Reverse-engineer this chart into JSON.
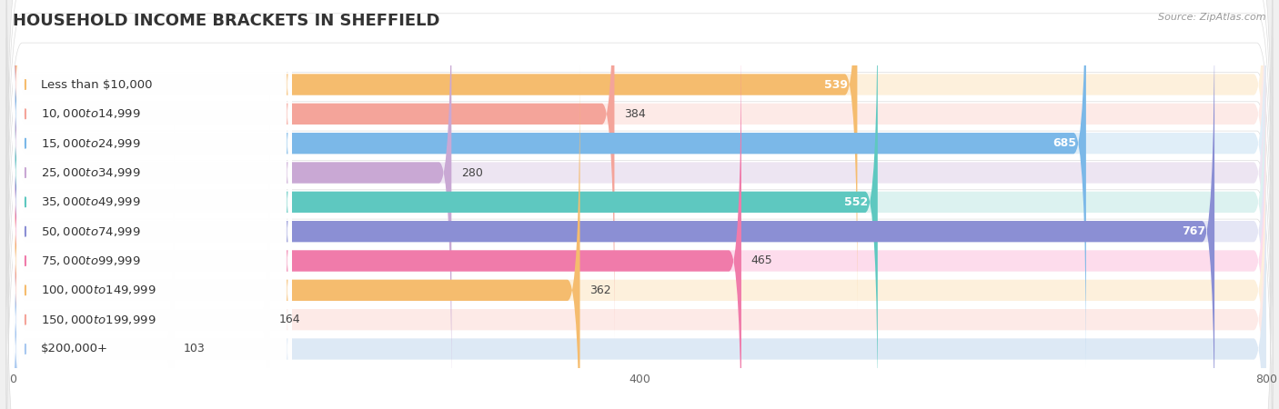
{
  "title": "HOUSEHOLD INCOME BRACKETS IN SHEFFIELD",
  "source": "Source: ZipAtlas.com",
  "categories": [
    "Less than $10,000",
    "$10,000 to $14,999",
    "$15,000 to $24,999",
    "$25,000 to $34,999",
    "$35,000 to $49,999",
    "$50,000 to $74,999",
    "$75,000 to $99,999",
    "$100,000 to $149,999",
    "$150,000 to $199,999",
    "$200,000+"
  ],
  "values": [
    539,
    384,
    685,
    280,
    552,
    767,
    465,
    362,
    164,
    103
  ],
  "bar_colors": [
    "#F5BC6E",
    "#F4A49A",
    "#7BB8E8",
    "#C9A8D4",
    "#5EC8C0",
    "#8B8FD4",
    "#F07BAA",
    "#F5BC6E",
    "#F4A49A",
    "#A8C8F0"
  ],
  "bar_bg_colors": [
    "#FDF0DC",
    "#FDEAE7",
    "#E0EEF8",
    "#EDE5F2",
    "#DCF2F0",
    "#E5E6F5",
    "#FDDCEC",
    "#FDF0DC",
    "#FDEAE7",
    "#DDE9F5"
  ],
  "value_inside": [
    true,
    false,
    true,
    false,
    true,
    true,
    false,
    false,
    false,
    false
  ],
  "xlim": [
    0,
    800
  ],
  "xticks": [
    0,
    400,
    800
  ],
  "background_color": "#F0F0F0",
  "bar_height": 0.72,
  "row_bg_color": "#FFFFFF",
  "label_fontsize": 9.5,
  "value_fontsize": 9.0,
  "title_fontsize": 13
}
